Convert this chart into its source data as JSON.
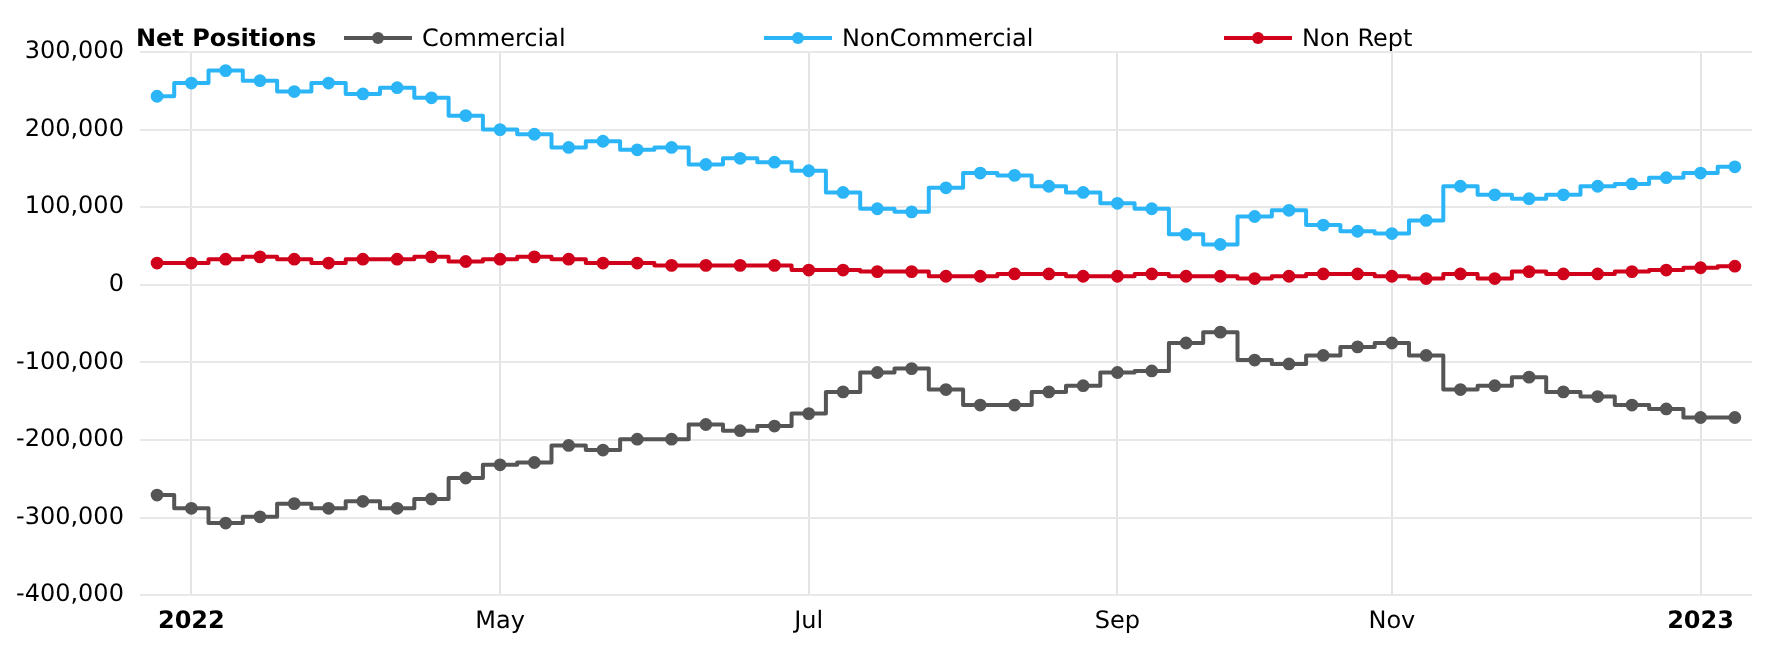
{
  "chart_data": {
    "type": "step",
    "title": "Net Positions",
    "categories": [
      null,
      "2022",
      null,
      null,
      null,
      null,
      null,
      null,
      null,
      null,
      "May",
      null,
      null,
      null,
      null,
      null,
      null,
      null,
      null,
      "Jul",
      null,
      null,
      null,
      null,
      null,
      null,
      null,
      null,
      "Sep",
      null,
      null,
      null,
      null,
      null,
      null,
      null,
      "Nov",
      null,
      null,
      null,
      null,
      null,
      null,
      null,
      null,
      "2023",
      null
    ],
    "series": [
      {
        "name": "Commercial",
        "color": "#555555",
        "values": [
          -271000,
          -288000,
          -307000,
          -299000,
          -282000,
          -288000,
          -279000,
          -288000,
          -276000,
          -249000,
          -232000,
          -229000,
          -207000,
          -213000,
          -199000,
          -199000,
          -180000,
          -188000,
          -182000,
          -166000,
          -138000,
          -113000,
          -108000,
          -135000,
          -155000,
          -155000,
          -138000,
          -130000,
          -113000,
          -111000,
          -75000,
          -61000,
          -97000,
          -102000,
          -91000,
          -80000,
          -75000,
          -91000,
          -135000,
          -130000,
          -119000,
          -138000,
          -144000,
          -155000,
          -160000,
          -171000,
          -171000
        ]
      },
      {
        "name": "NonCommercial",
        "color": "#2bb5f7",
        "values": [
          243000,
          260000,
          276000,
          263000,
          249000,
          260000,
          246000,
          254000,
          241000,
          218000,
          200000,
          194000,
          177000,
          185000,
          174000,
          177000,
          155000,
          163000,
          158000,
          147000,
          119000,
          98000,
          94000,
          125000,
          144000,
          141000,
          127000,
          119000,
          105000,
          98000,
          65000,
          52000,
          88000,
          96000,
          77000,
          69000,
          66000,
          83000,
          127000,
          116000,
          111000,
          116000,
          127000,
          130000,
          138000,
          144000,
          152000
        ]
      },
      {
        "name": "Non Rept",
        "color": "#d0021b",
        "values": [
          28000,
          28000,
          33000,
          36000,
          33000,
          28000,
          33000,
          33000,
          36000,
          30000,
          33000,
          36000,
          33000,
          28000,
          28000,
          25000,
          25000,
          25000,
          25000,
          19000,
          19000,
          17000,
          17000,
          11000,
          11000,
          14000,
          14000,
          11000,
          11000,
          14000,
          11000,
          11000,
          8000,
          11000,
          14000,
          14000,
          11000,
          8000,
          14000,
          8000,
          17000,
          14000,
          14000,
          17000,
          19000,
          22000,
          24000
        ]
      }
    ],
    "ylim": [
      -400000,
      300000
    ],
    "yticks": [
      {
        "value": -400000,
        "label": "-400,000"
      },
      {
        "value": -300000,
        "label": "-300,000"
      },
      {
        "value": -200000,
        "label": "-200,000"
      },
      {
        "value": -100000,
        "label": "-100,000"
      },
      0,
      {
        "value": 100000,
        "label": "100,000"
      },
      {
        "value": 200000,
        "label": "200,000"
      },
      {
        "value": 300000,
        "label": "300,000"
      }
    ],
    "grid": true,
    "legend": "top left",
    "marker": "circle",
    "line_style": "solid"
  }
}
